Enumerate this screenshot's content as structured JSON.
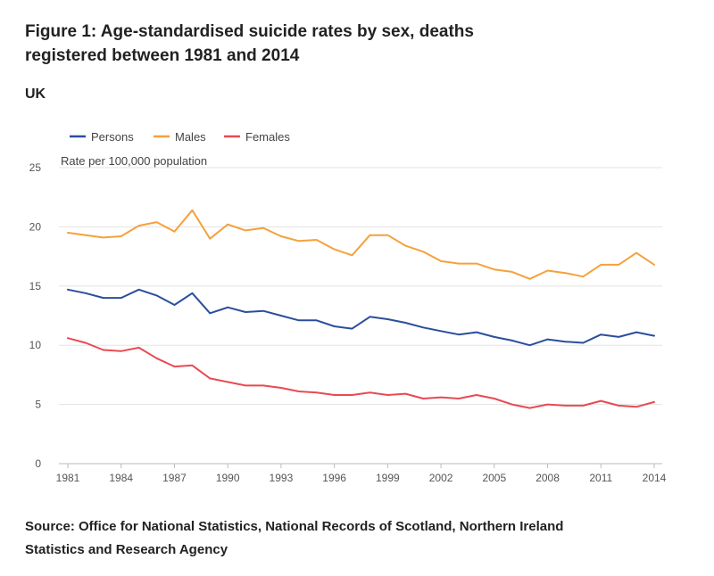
{
  "header": {
    "title": "Figure 1: Age-standardised suicide rates by sex, deaths registered between 1981 and 2014",
    "subtitle": "UK"
  },
  "footer": {
    "source": "Source: Office for National Statistics, National Records of Scotland, Northern Ireland Statistics and Research Agency"
  },
  "chart_data": {
    "type": "line",
    "title": "Figure 1: Age-standardised suicide rates by sex, deaths registered between 1981 and 2014",
    "subtitle": "UK",
    "xlabel": "",
    "ylabel": "Rate per 100,000 population",
    "ylim": [
      0,
      25
    ],
    "yticks": [
      0,
      5,
      10,
      15,
      20,
      25
    ],
    "xlim": [
      1981,
      2014
    ],
    "xticks": [
      1981,
      1984,
      1987,
      1990,
      1993,
      1996,
      1999,
      2002,
      2005,
      2008,
      2011,
      2014
    ],
    "grid": "horizontal",
    "legend_position": "top-left",
    "x": [
      1981,
      1982,
      1983,
      1984,
      1985,
      1986,
      1987,
      1988,
      1989,
      1990,
      1991,
      1992,
      1993,
      1994,
      1995,
      1996,
      1997,
      1998,
      1999,
      2000,
      2001,
      2002,
      2003,
      2004,
      2005,
      2006,
      2007,
      2008,
      2009,
      2010,
      2011,
      2012,
      2013,
      2014
    ],
    "series": [
      {
        "name": "Persons",
        "color": "#2a4e9b",
        "values": [
          14.7,
          14.4,
          14.0,
          14.0,
          14.7,
          14.2,
          13.4,
          14.4,
          12.7,
          13.2,
          12.8,
          12.9,
          12.5,
          12.1,
          12.1,
          11.6,
          11.4,
          12.4,
          12.2,
          11.9,
          11.5,
          11.2,
          10.9,
          11.1,
          10.7,
          10.4,
          10.0,
          10.5,
          10.3,
          10.2,
          10.9,
          10.7,
          11.1,
          10.8
        ]
      },
      {
        "name": "Males",
        "color": "#f5a13b",
        "values": [
          19.5,
          19.3,
          19.1,
          19.2,
          20.1,
          20.4,
          19.6,
          21.4,
          19.0,
          20.2,
          19.7,
          19.9,
          19.2,
          18.8,
          18.9,
          18.1,
          17.6,
          19.3,
          19.3,
          18.4,
          17.9,
          17.1,
          16.9,
          16.9,
          16.4,
          16.2,
          15.6,
          16.3,
          16.1,
          15.8,
          16.8,
          16.8,
          17.8,
          16.8
        ]
      },
      {
        "name": "Females",
        "color": "#e84a52",
        "values": [
          10.6,
          10.2,
          9.6,
          9.5,
          9.8,
          8.9,
          8.2,
          8.3,
          7.2,
          6.9,
          6.6,
          6.6,
          6.4,
          6.1,
          6.0,
          5.8,
          5.8,
          6.0,
          5.8,
          5.9,
          5.5,
          5.6,
          5.5,
          5.8,
          5.5,
          5.0,
          4.7,
          5.0,
          4.9,
          4.9,
          5.3,
          4.9,
          4.8,
          5.2
        ]
      }
    ]
  }
}
